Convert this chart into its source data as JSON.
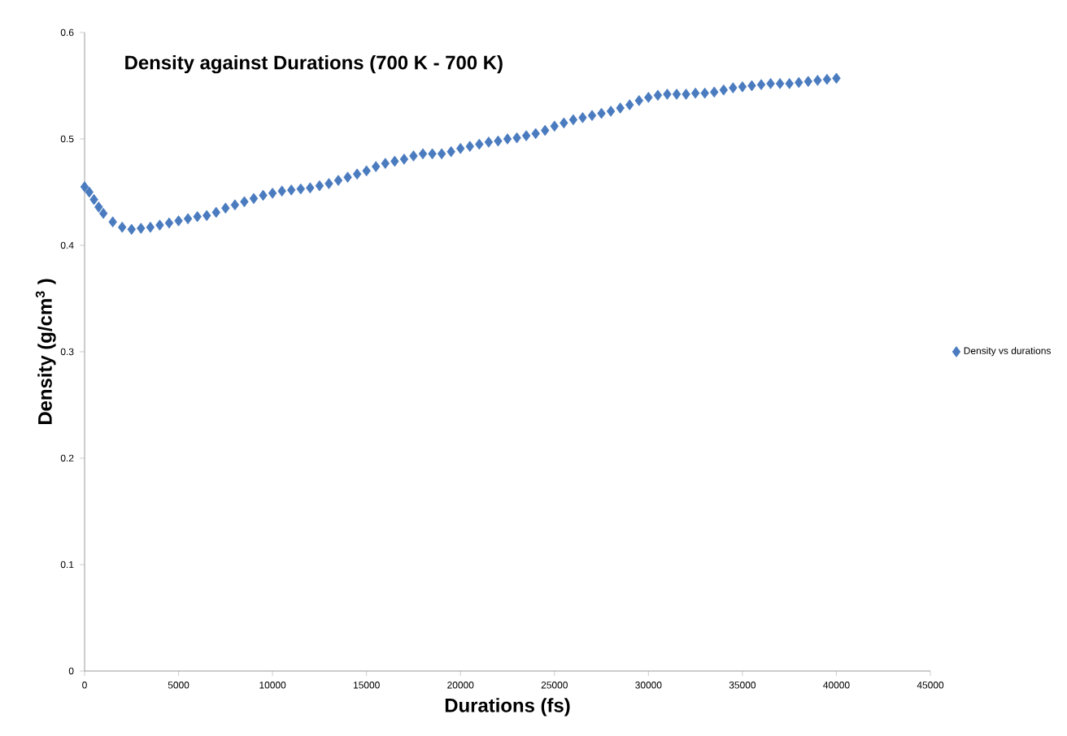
{
  "chart_data": {
    "type": "scatter",
    "title": "Density against Durations (700 K - 700 K)",
    "xlabel": "Durations (fs)",
    "ylabel": "Density (g/cm$^{3}$ )",
    "xlim": [
      0,
      45000
    ],
    "xticks": [
      0,
      5000,
      10000,
      15000,
      20000,
      25000,
      30000,
      35000,
      40000,
      45000
    ],
    "ylim": [
      0,
      0.6
    ],
    "yticks": [
      0,
      0.1,
      0.2,
      0.3,
      0.4,
      0.5,
      0.6
    ],
    "marker": "diamond",
    "legend": "right",
    "grid": false,
    "series": [
      {
        "name": "Density vs durations",
        "color": "#4a7bbf",
        "x": [
          0,
          250,
          500,
          750,
          1000,
          1500,
          2000,
          2500,
          3000,
          3500,
          4000,
          4500,
          5000,
          5500,
          6000,
          6500,
          7000,
          7500,
          8000,
          8500,
          9000,
          9500,
          10000,
          10500,
          11000,
          11500,
          12000,
          12500,
          13000,
          13500,
          14000,
          14500,
          15000,
          15500,
          16000,
          16500,
          17000,
          17500,
          18000,
          18500,
          19000,
          19500,
          20000,
          20500,
          21000,
          21500,
          22000,
          22500,
          23000,
          23500,
          24000,
          24500,
          25000,
          25500,
          26000,
          26500,
          27000,
          27500,
          28000,
          28500,
          29000,
          29500,
          30000,
          30500,
          31000,
          31500,
          32000,
          32500,
          33000,
          33500,
          34000,
          34500,
          35000,
          35500,
          36000,
          36500,
          37000,
          37500,
          38000,
          38500,
          39000,
          39500,
          40000
        ],
        "values": [
          0.455,
          0.45,
          0.443,
          0.436,
          0.43,
          0.422,
          0.417,
          0.415,
          0.416,
          0.417,
          0.419,
          0.421,
          0.423,
          0.425,
          0.427,
          0.428,
          0.431,
          0.435,
          0.438,
          0.441,
          0.444,
          0.447,
          0.449,
          0.451,
          0.452,
          0.453,
          0.454,
          0.456,
          0.458,
          0.461,
          0.464,
          0.467,
          0.47,
          0.474,
          0.477,
          0.479,
          0.481,
          0.484,
          0.486,
          0.486,
          0.486,
          0.488,
          0.491,
          0.493,
          0.495,
          0.497,
          0.498,
          0.5,
          0.501,
          0.503,
          0.505,
          0.508,
          0.512,
          0.515,
          0.518,
          0.52,
          0.522,
          0.524,
          0.526,
          0.529,
          0.532,
          0.536,
          0.539,
          0.541,
          0.542,
          0.542,
          0.542,
          0.543,
          0.543,
          0.544,
          0.546,
          0.548,
          0.549,
          0.55,
          0.551,
          0.552,
          0.552,
          0.552,
          0.553,
          0.554,
          0.555,
          0.556,
          0.557
        ]
      }
    ]
  }
}
